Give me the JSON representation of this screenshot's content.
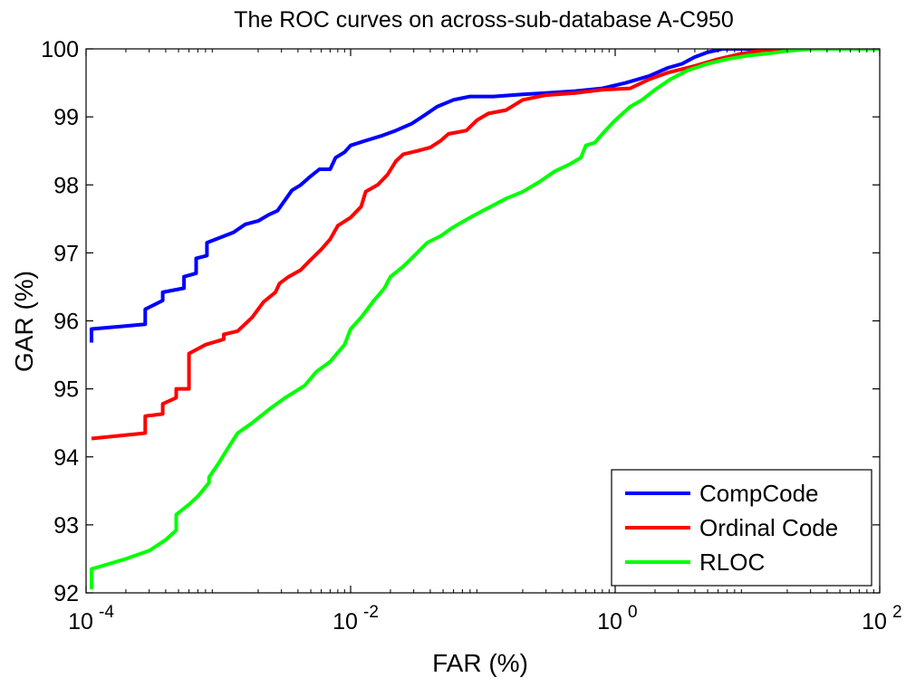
{
  "chart_data": {
    "type": "line",
    "title": "The ROC curves on across-sub-database A-C950",
    "xlabel": "FAR (%)",
    "ylabel": "GAR (%)",
    "xscale": "log",
    "xlim": [
      0.0001,
      100
    ],
    "ylim": [
      92,
      100
    ],
    "x_ticks": [
      {
        "value": 0.0001,
        "base": "10",
        "exp": "-4"
      },
      {
        "value": 0.01,
        "base": "10",
        "exp": "-2"
      },
      {
        "value": 1,
        "base": "10",
        "exp": "0"
      },
      {
        "value": 100,
        "base": "10",
        "exp": "2"
      }
    ],
    "y_ticks": [
      {
        "value": 92,
        "label": "92"
      },
      {
        "value": 93,
        "label": "93"
      },
      {
        "value": 94,
        "label": "94"
      },
      {
        "value": 95,
        "label": "95"
      },
      {
        "value": 96,
        "label": "96"
      },
      {
        "value": 97,
        "label": "97"
      },
      {
        "value": 98,
        "label": "98"
      },
      {
        "value": 99,
        "label": "99"
      },
      {
        "value": 100,
        "label": "100"
      }
    ],
    "grid": false,
    "legend_position": "bottom-right",
    "series": [
      {
        "name": "CompCode",
        "color": "#0000ff",
        "points": [
          [
            0.00011,
            95.68
          ],
          [
            0.00011,
            95.88
          ],
          [
            0.00028,
            95.95
          ],
          [
            0.00028,
            96.17
          ],
          [
            0.00038,
            96.3
          ],
          [
            0.00038,
            96.42
          ],
          [
            0.00055,
            96.48
          ],
          [
            0.00055,
            96.65
          ],
          [
            0.00068,
            96.7
          ],
          [
            0.00068,
            96.92
          ],
          [
            0.00082,
            96.96
          ],
          [
            0.00082,
            97.15
          ],
          [
            0.0013,
            97.3
          ],
          [
            0.0016,
            97.42
          ],
          [
            0.002,
            97.47
          ],
          [
            0.0024,
            97.56
          ],
          [
            0.0028,
            97.62
          ],
          [
            0.0032,
            97.78
          ],
          [
            0.0036,
            97.92
          ],
          [
            0.0042,
            98.0
          ],
          [
            0.0048,
            98.1
          ],
          [
            0.0058,
            98.23
          ],
          [
            0.007,
            98.23
          ],
          [
            0.0077,
            98.4
          ],
          [
            0.009,
            98.48
          ],
          [
            0.01,
            98.58
          ],
          [
            0.013,
            98.65
          ],
          [
            0.017,
            98.72
          ],
          [
            0.022,
            98.8
          ],
          [
            0.029,
            98.9
          ],
          [
            0.036,
            99.02
          ],
          [
            0.045,
            99.15
          ],
          [
            0.06,
            99.25
          ],
          [
            0.08,
            99.3
          ],
          [
            0.12,
            99.3
          ],
          [
            0.2,
            99.33
          ],
          [
            0.3,
            99.35
          ],
          [
            0.5,
            99.38
          ],
          [
            0.8,
            99.42
          ],
          [
            1.2,
            99.5
          ],
          [
            1.8,
            99.6
          ],
          [
            2.5,
            99.72
          ],
          [
            3.2,
            99.78
          ],
          [
            4.0,
            99.88
          ],
          [
            5.0,
            99.95
          ],
          [
            6.5,
            100.0
          ],
          [
            100,
            100.0
          ]
        ]
      },
      {
        "name": "Ordinal Code",
        "color": "#ff0000",
        "points": [
          [
            0.00011,
            94.27
          ],
          [
            0.00028,
            94.35
          ],
          [
            0.00028,
            94.6
          ],
          [
            0.00038,
            94.63
          ],
          [
            0.00038,
            94.78
          ],
          [
            0.00048,
            94.87
          ],
          [
            0.00048,
            95.0
          ],
          [
            0.0006,
            95.0
          ],
          [
            0.0006,
            95.52
          ],
          [
            0.0008,
            95.65
          ],
          [
            0.0011,
            95.73
          ],
          [
            0.0011,
            95.8
          ],
          [
            0.0014,
            95.85
          ],
          [
            0.0018,
            96.05
          ],
          [
            0.0022,
            96.28
          ],
          [
            0.0027,
            96.42
          ],
          [
            0.0029,
            96.55
          ],
          [
            0.0034,
            96.65
          ],
          [
            0.0042,
            96.75
          ],
          [
            0.005,
            96.9
          ],
          [
            0.006,
            97.05
          ],
          [
            0.007,
            97.2
          ],
          [
            0.008,
            97.4
          ],
          [
            0.01,
            97.52
          ],
          [
            0.012,
            97.68
          ],
          [
            0.013,
            97.9
          ],
          [
            0.016,
            98.0
          ],
          [
            0.019,
            98.15
          ],
          [
            0.022,
            98.35
          ],
          [
            0.025,
            98.45
          ],
          [
            0.032,
            98.5
          ],
          [
            0.04,
            98.55
          ],
          [
            0.048,
            98.65
          ],
          [
            0.055,
            98.75
          ],
          [
            0.075,
            98.8
          ],
          [
            0.09,
            98.95
          ],
          [
            0.11,
            99.05
          ],
          [
            0.15,
            99.1
          ],
          [
            0.2,
            99.25
          ],
          [
            0.3,
            99.32
          ],
          [
            0.5,
            99.35
          ],
          [
            0.8,
            99.4
          ],
          [
            1.3,
            99.42
          ],
          [
            1.8,
            99.55
          ],
          [
            2.5,
            99.65
          ],
          [
            4.0,
            99.75
          ],
          [
            6.0,
            99.85
          ],
          [
            9.0,
            99.93
          ],
          [
            13.0,
            99.98
          ],
          [
            20.0,
            100.0
          ],
          [
            100,
            100.0
          ]
        ]
      },
      {
        "name": "RLOC",
        "color": "#00ff00",
        "points": [
          [
            0.00011,
            92.05
          ],
          [
            0.00011,
            92.35
          ],
          [
            0.0002,
            92.5
          ],
          [
            0.0003,
            92.62
          ],
          [
            0.0004,
            92.78
          ],
          [
            0.00048,
            92.92
          ],
          [
            0.00048,
            93.15
          ],
          [
            0.0006,
            93.3
          ],
          [
            0.0007,
            93.42
          ],
          [
            0.00085,
            93.62
          ],
          [
            0.00085,
            93.7
          ],
          [
            0.001,
            93.9
          ],
          [
            0.0012,
            94.15
          ],
          [
            0.0014,
            94.35
          ],
          [
            0.0018,
            94.5
          ],
          [
            0.0025,
            94.72
          ],
          [
            0.0032,
            94.87
          ],
          [
            0.0045,
            95.05
          ],
          [
            0.0055,
            95.25
          ],
          [
            0.007,
            95.4
          ],
          [
            0.009,
            95.65
          ],
          [
            0.01,
            95.88
          ],
          [
            0.012,
            96.05
          ],
          [
            0.015,
            96.3
          ],
          [
            0.018,
            96.48
          ],
          [
            0.02,
            96.65
          ],
          [
            0.025,
            96.8
          ],
          [
            0.03,
            96.95
          ],
          [
            0.038,
            97.15
          ],
          [
            0.048,
            97.25
          ],
          [
            0.06,
            97.38
          ],
          [
            0.08,
            97.52
          ],
          [
            0.1,
            97.62
          ],
          [
            0.15,
            97.8
          ],
          [
            0.2,
            97.9
          ],
          [
            0.27,
            98.05
          ],
          [
            0.35,
            98.2
          ],
          [
            0.45,
            98.3
          ],
          [
            0.55,
            98.4
          ],
          [
            0.6,
            98.58
          ],
          [
            0.7,
            98.62
          ],
          [
            0.8,
            98.75
          ],
          [
            1.0,
            98.95
          ],
          [
            1.3,
            99.15
          ],
          [
            1.6,
            99.25
          ],
          [
            2.0,
            99.4
          ],
          [
            2.6,
            99.55
          ],
          [
            3.5,
            99.68
          ],
          [
            5.0,
            99.78
          ],
          [
            7.0,
            99.85
          ],
          [
            10.0,
            99.9
          ],
          [
            14.0,
            99.93
          ],
          [
            20.0,
            99.97
          ],
          [
            32.0,
            100.0
          ],
          [
            100,
            100.0
          ]
        ]
      }
    ]
  }
}
